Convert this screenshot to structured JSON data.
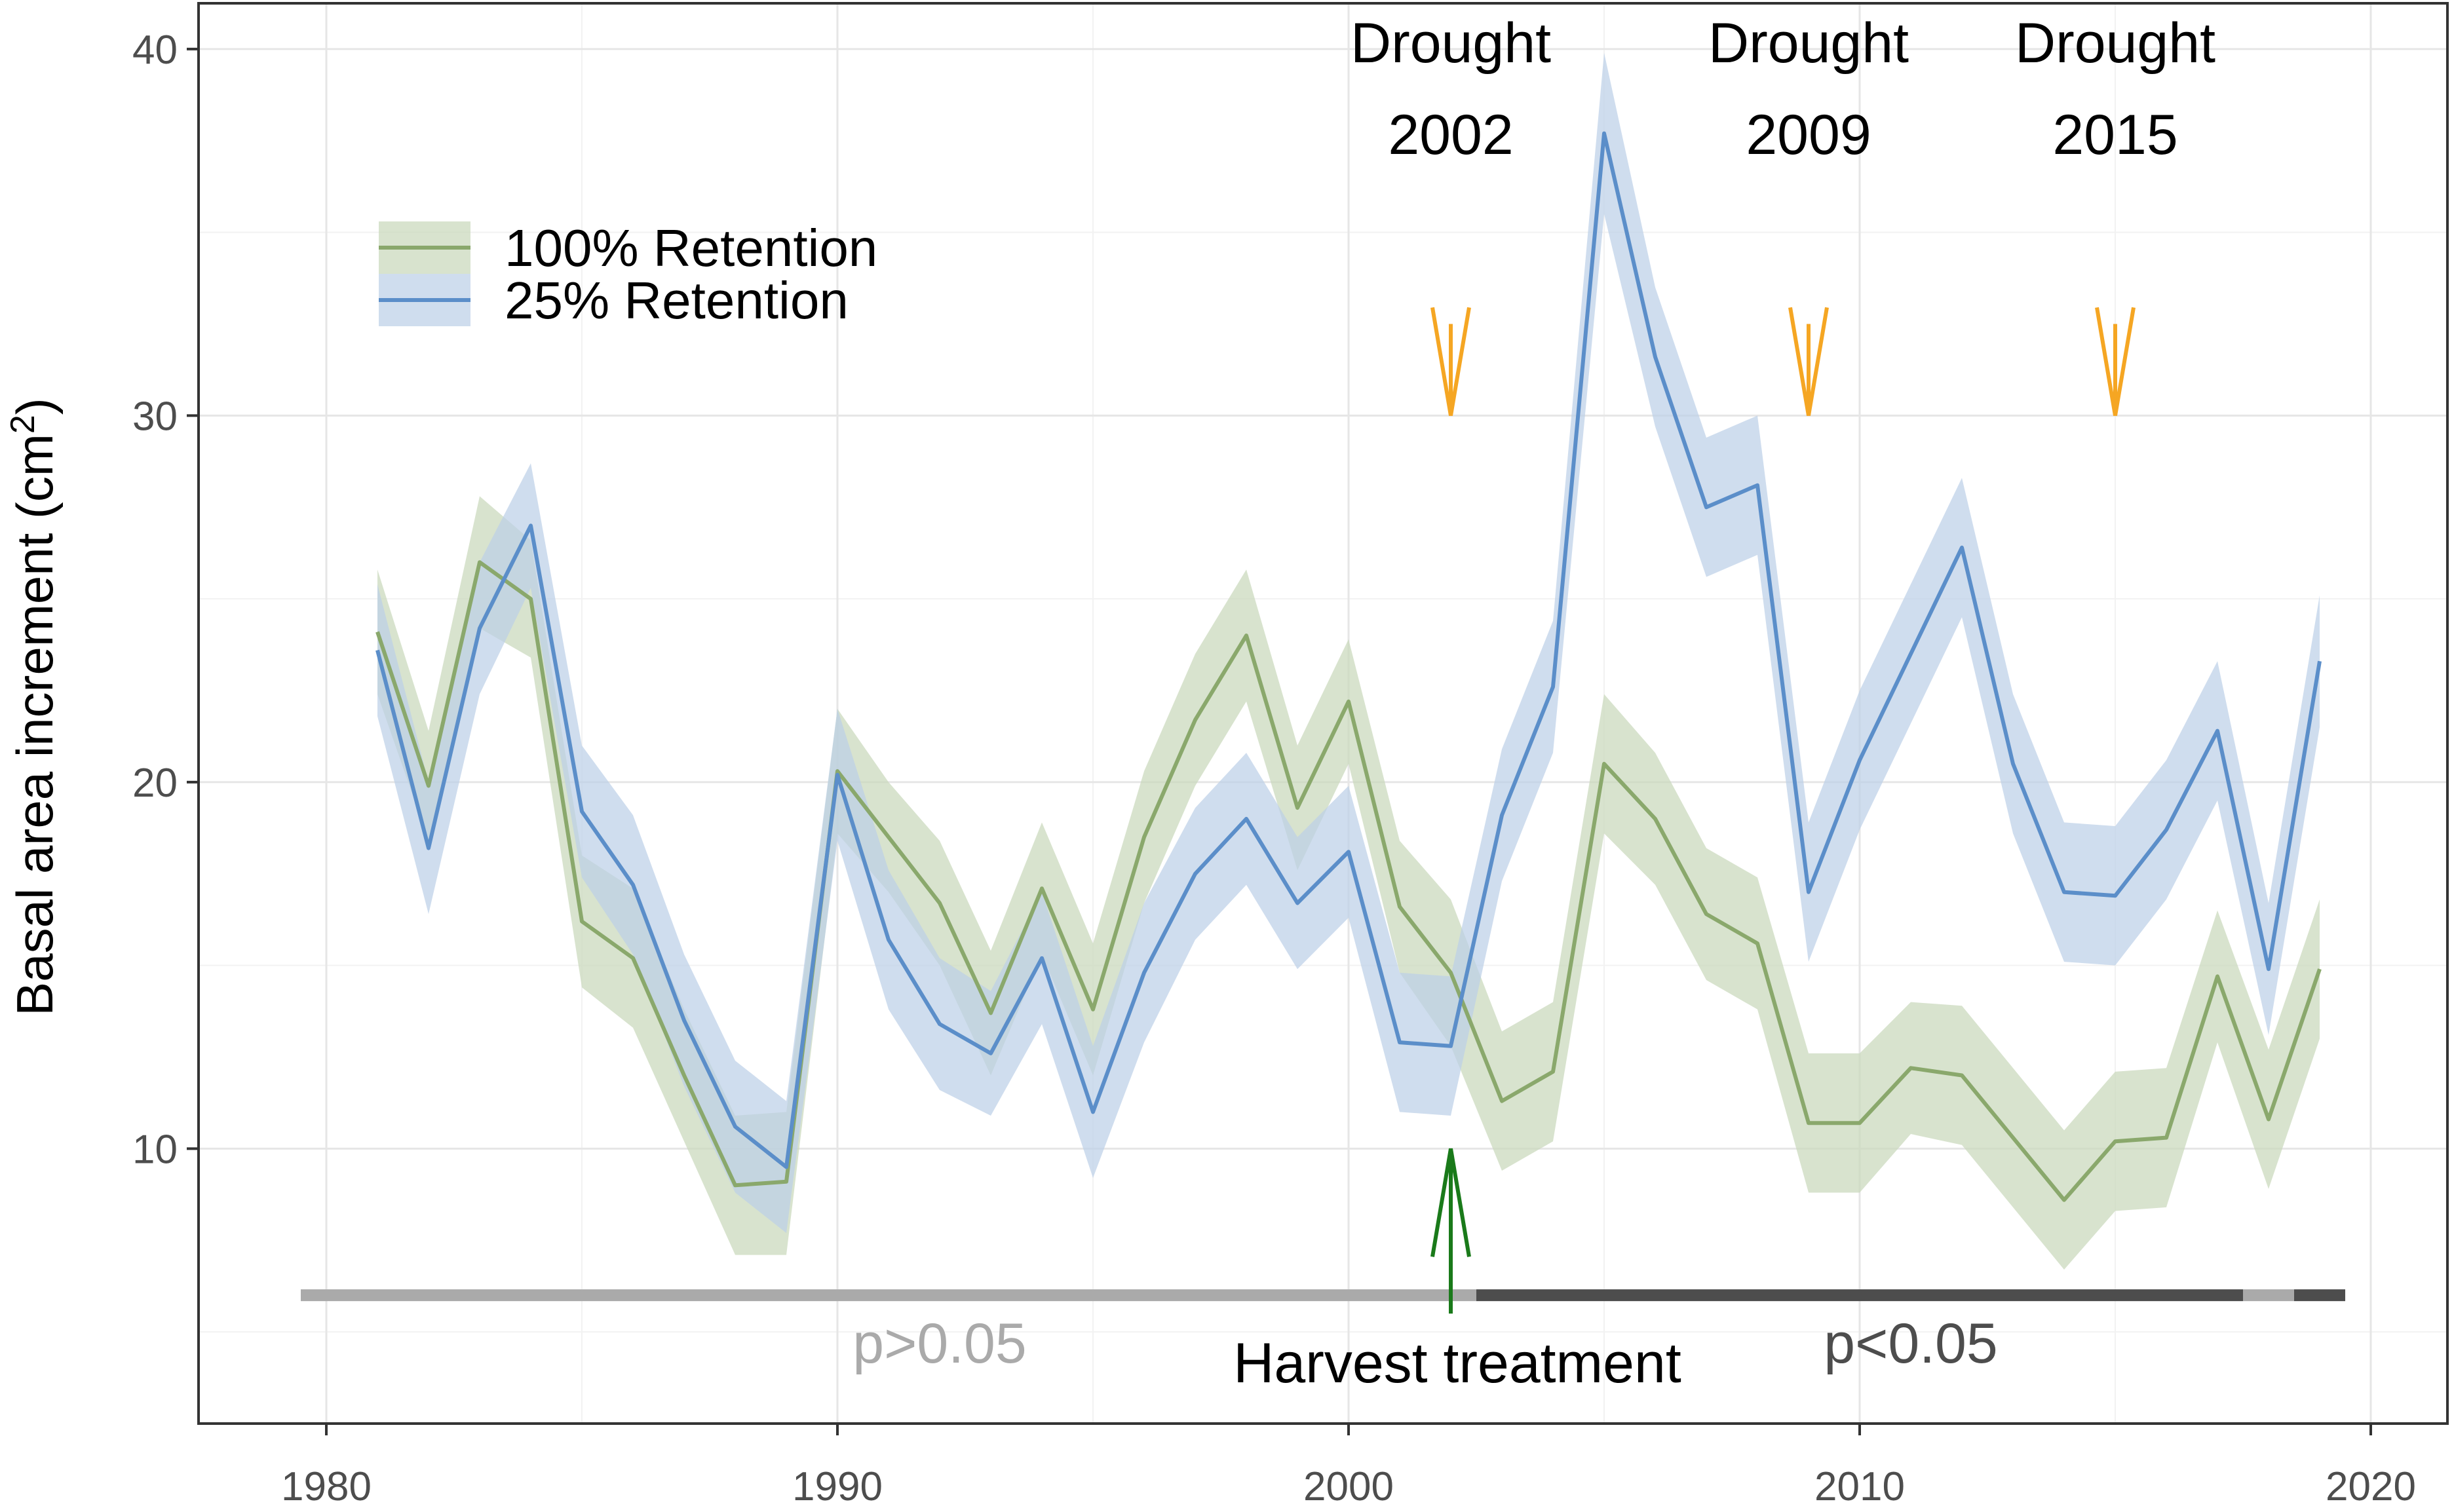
{
  "chart_data": {
    "type": "line",
    "title": "",
    "xlabel": "",
    "ylabel": "Basal area increment (cm²)",
    "ylabel_main": "Basal area increment (cm",
    "ylabel_sup": "2",
    "ylabel_close": ")",
    "xlim": [
      1977.5,
      2021.5
    ],
    "ylim": [
      2.5,
      41.25
    ],
    "x_ticks": [
      1980,
      1990,
      2000,
      2010,
      2020
    ],
    "y_ticks": [
      10,
      20,
      30,
      40
    ],
    "x_tick_labels": [
      "1980",
      "1990",
      "2000",
      "2010",
      "2020"
    ],
    "y_tick_labels": [
      "10",
      "20",
      "30",
      "40"
    ],
    "grid": true,
    "legend_position": "top-left",
    "x": [
      1981,
      1982,
      1983,
      1984,
      1985,
      1986,
      1987,
      1988,
      1989,
      1990,
      1991,
      1992,
      1993,
      1994,
      1995,
      1996,
      1997,
      1998,
      1999,
      2000,
      2001,
      2002,
      2003,
      2004,
      2005,
      2006,
      2007,
      2008,
      2009,
      2010,
      2011,
      2012,
      2013,
      2014,
      2015,
      2016,
      2017,
      2018,
      2019
    ],
    "series": [
      {
        "name": "100% Retention",
        "color": "#8aa86c",
        "band_color": "#c9d8bb",
        "values": [
          24.1,
          19.9,
          26.0,
          25.0,
          16.2,
          15.2,
          12.0,
          9.0,
          9.1,
          20.3,
          18.5,
          16.7,
          13.7,
          17.1,
          13.8,
          18.5,
          21.7,
          24.0,
          19.3,
          22.2,
          16.6,
          14.8,
          11.3,
          12.1,
          20.5,
          19.0,
          16.4,
          15.6,
          10.7,
          10.7,
          12.2,
          12.0,
          10.3,
          8.6,
          10.2,
          10.3,
          14.7,
          10.8,
          14.9
        ],
        "lower": [
          22.4,
          18.4,
          24.2,
          23.4,
          14.4,
          13.3,
          10.2,
          7.1,
          7.1,
          18.6,
          17.0,
          15.0,
          12.0,
          15.3,
          12.0,
          16.7,
          19.9,
          22.2,
          17.6,
          20.5,
          14.8,
          12.8,
          9.4,
          10.2,
          18.6,
          17.2,
          14.6,
          13.8,
          8.8,
          8.8,
          10.4,
          10.1,
          8.4,
          6.7,
          8.3,
          8.4,
          12.9,
          8.9,
          13.0
        ],
        "upper": [
          25.8,
          21.4,
          27.8,
          26.6,
          18.0,
          17.1,
          13.8,
          10.9,
          11.0,
          22.0,
          20.0,
          18.4,
          15.4,
          18.9,
          15.6,
          20.3,
          23.5,
          25.8,
          21.0,
          23.9,
          18.4,
          16.8,
          13.2,
          14.0,
          22.4,
          20.8,
          18.2,
          17.4,
          12.6,
          12.6,
          14.0,
          13.9,
          12.2,
          10.5,
          12.1,
          12.2,
          16.5,
          12.7,
          16.8
        ]
      },
      {
        "name": "25% Retention",
        "color": "#5b8ec9",
        "band_color": "#bdd0e8",
        "values": [
          23.6,
          18.2,
          24.2,
          27.0,
          19.2,
          17.2,
          13.5,
          10.6,
          9.5,
          20.2,
          15.7,
          13.4,
          12.6,
          15.2,
          11.0,
          14.8,
          17.5,
          19.0,
          16.7,
          18.1,
          12.9,
          12.8,
          19.1,
          22.6,
          37.7,
          31.6,
          27.5,
          28.1,
          17.0,
          20.6,
          23.5,
          26.4,
          20.5,
          17.0,
          16.9,
          18.7,
          21.4,
          14.9,
          23.3
        ],
        "lower": [
          21.8,
          16.4,
          22.4,
          25.3,
          17.4,
          15.3,
          11.7,
          8.8,
          7.7,
          18.4,
          13.8,
          11.6,
          10.9,
          13.4,
          9.2,
          12.9,
          15.7,
          17.2,
          14.9,
          16.3,
          11.0,
          10.9,
          17.3,
          20.8,
          35.5,
          29.7,
          25.6,
          26.2,
          15.1,
          18.7,
          21.6,
          24.5,
          18.6,
          15.1,
          15.0,
          16.8,
          19.5,
          13.1,
          21.5
        ],
        "upper": [
          25.4,
          20.0,
          26.0,
          28.7,
          21.0,
          19.1,
          15.3,
          12.4,
          11.3,
          22.0,
          17.6,
          15.2,
          14.3,
          17.0,
          12.8,
          16.7,
          19.3,
          20.8,
          18.5,
          19.9,
          14.8,
          14.7,
          20.9,
          24.4,
          39.9,
          33.5,
          29.4,
          30.0,
          18.9,
          22.5,
          25.4,
          28.3,
          22.4,
          18.9,
          18.8,
          20.6,
          23.3,
          16.7,
          25.1
        ]
      }
    ],
    "significance_bar": {
      "y": 6.0,
      "segments": [
        {
          "x_start": 1979.5,
          "x_end": 2002.5,
          "significant": false
        },
        {
          "x_start": 2002.5,
          "x_end": 2017.5,
          "significant": true
        },
        {
          "x_start": 2017.5,
          "x_end": 2018.5,
          "significant": false
        },
        {
          "x_start": 2018.5,
          "x_end": 2019.5,
          "significant": true
        }
      ],
      "color_ns": "#aaaaaa",
      "color_sig": "#4d4d4d"
    },
    "annotations": [
      {
        "kind": "drought",
        "year": 2002,
        "label_line1": "Drought",
        "label_line2": "2002",
        "arrow_from_y": 32.5,
        "arrow_to_y": 30.0,
        "color": "#f5a623"
      },
      {
        "kind": "drought",
        "year": 2009,
        "label_line1": "Drought",
        "label_line2": "2009",
        "arrow_from_y": 32.5,
        "arrow_to_y": 30.0,
        "color": "#f5a623"
      },
      {
        "kind": "drought",
        "year": 2015,
        "label_line1": "Drought",
        "label_line2": "2015",
        "arrow_from_y": 32.5,
        "arrow_to_y": 30.0,
        "color": "#f5a623"
      },
      {
        "kind": "harvest",
        "year": 2002,
        "label": "Harvest treatment",
        "arrow_from_y": 5.5,
        "arrow_to_y": 10.0,
        "color": "#1a7a1a"
      },
      {
        "kind": "pvalue",
        "x": 1992,
        "label": "p>0.05",
        "color": "#aaaaaa"
      },
      {
        "kind": "pvalue",
        "x": 2011,
        "label": "p<0.05",
        "color": "#4d4d4d"
      }
    ]
  }
}
